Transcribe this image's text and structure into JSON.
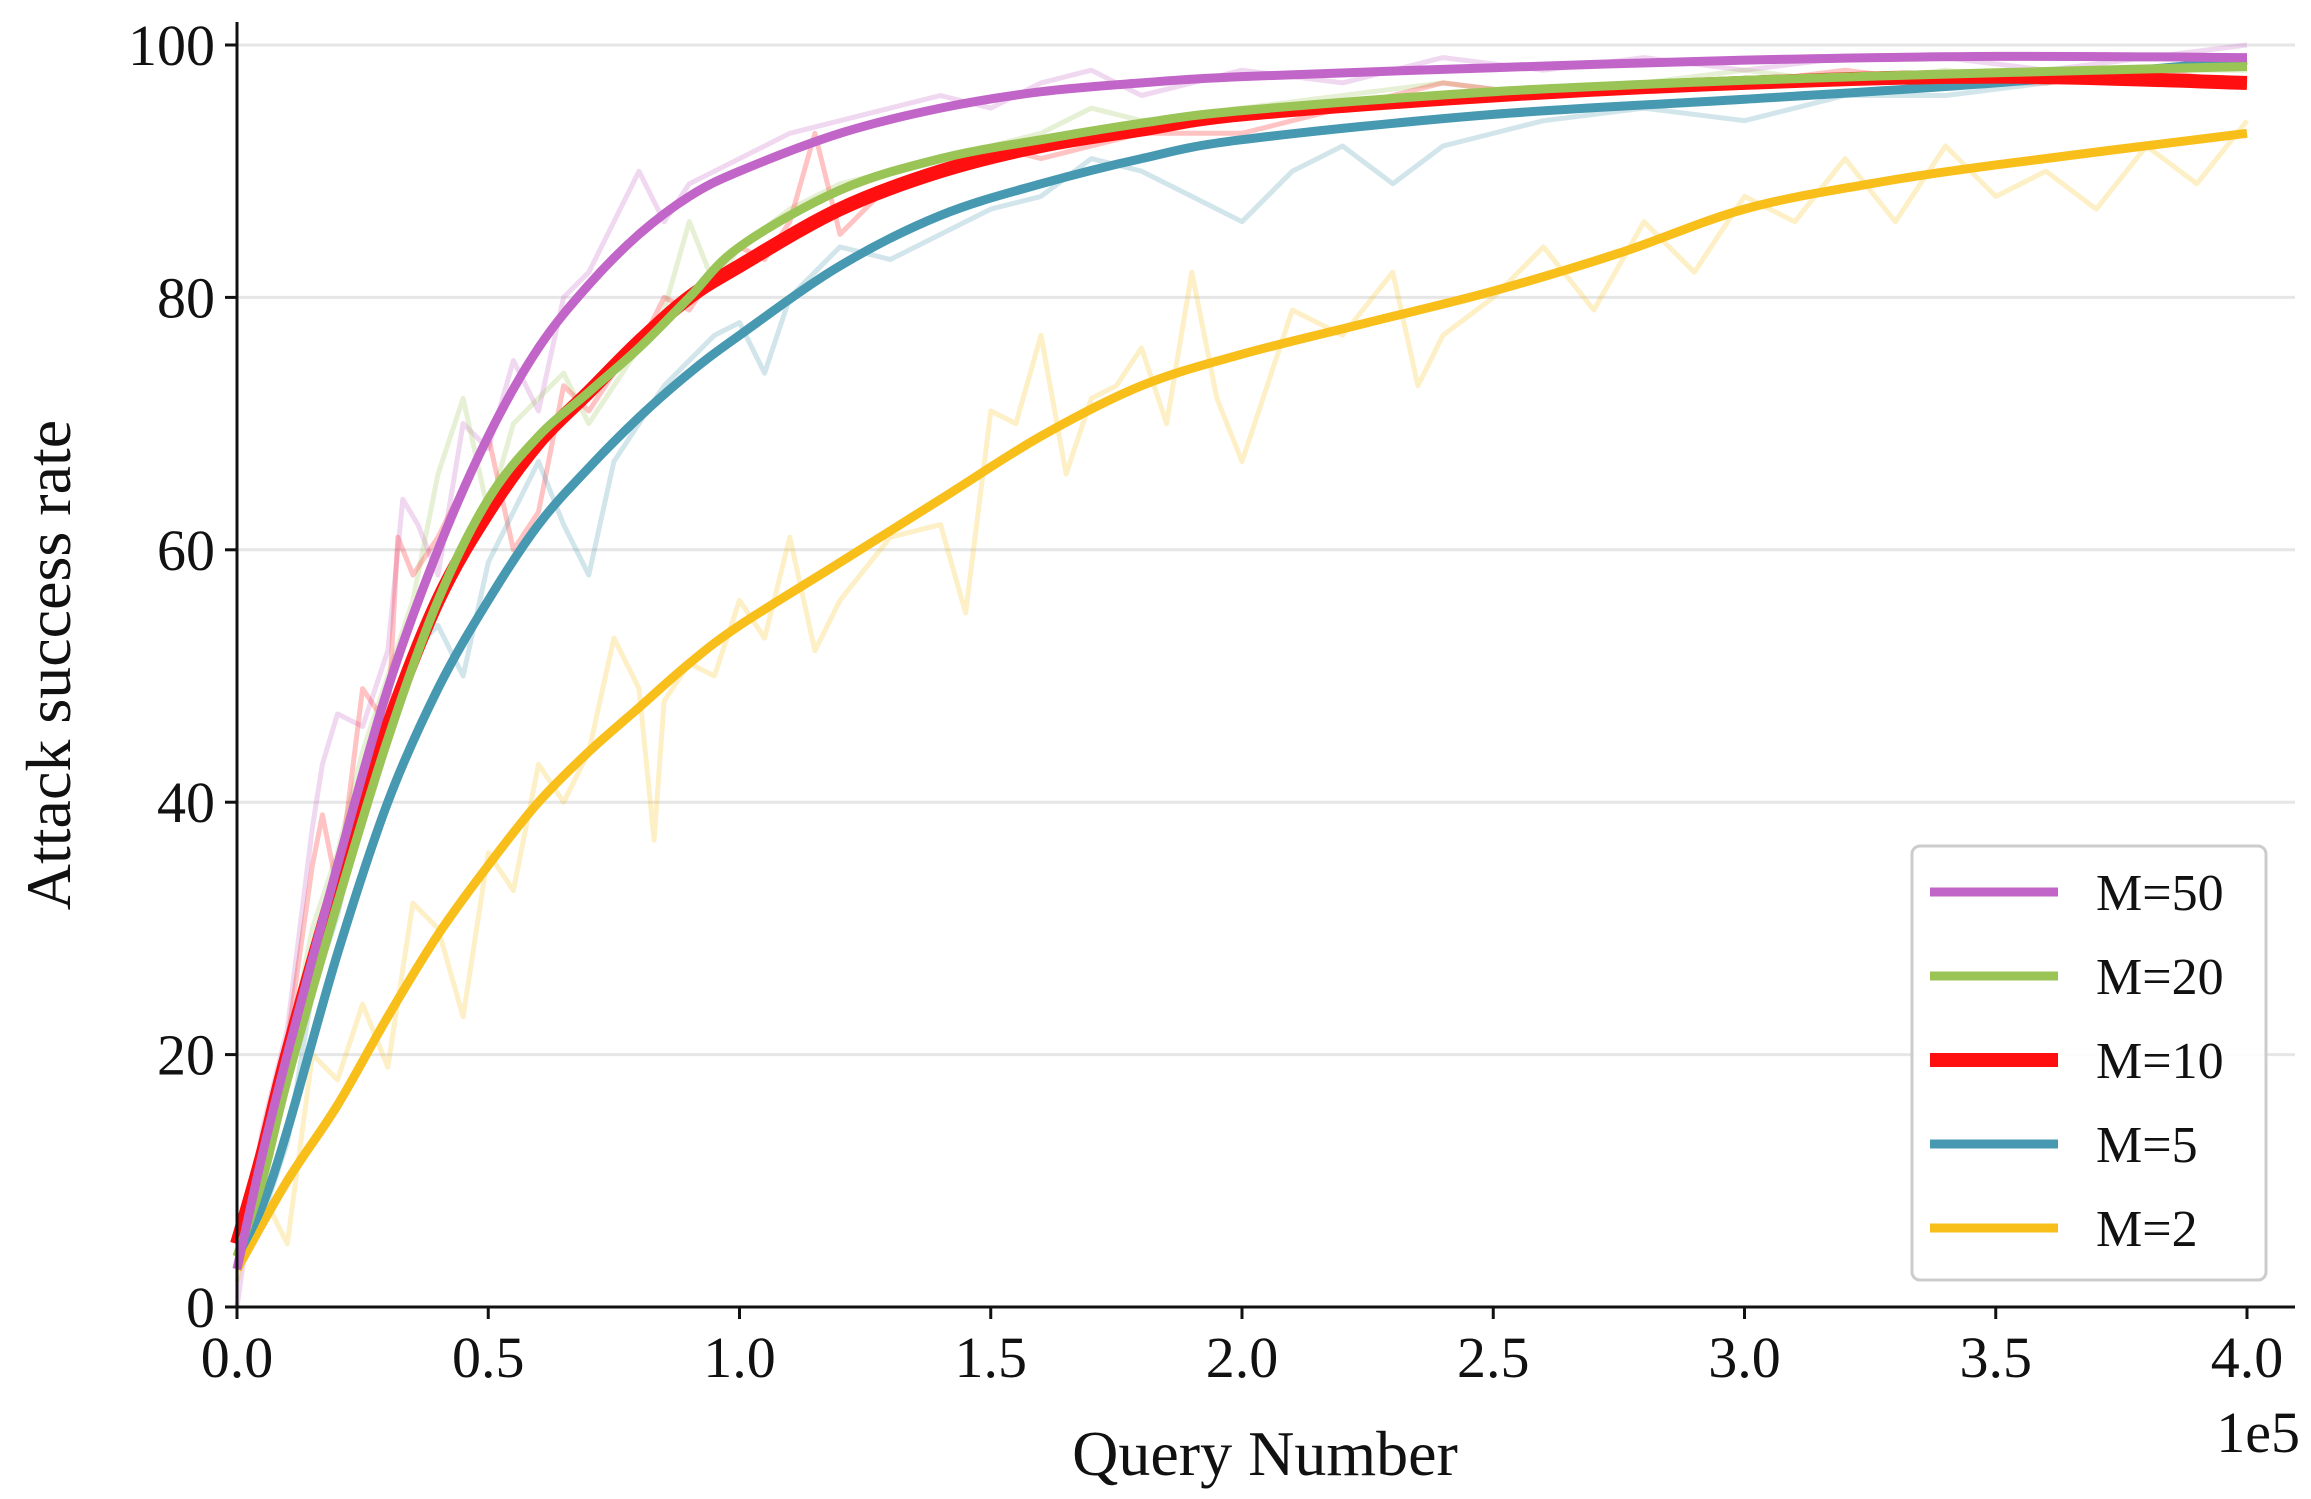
{
  "chart_data": {
    "type": "line",
    "title": "",
    "xlabel": "Query Number",
    "ylabel": "Attack success rate",
    "x_offset_label": "1e5",
    "xlim": [
      0,
      4.1
    ],
    "ylim": [
      0,
      102
    ],
    "x_ticks": [
      0.0,
      0.5,
      1.0,
      1.5,
      2.0,
      2.5,
      3.0,
      3.5,
      4.0
    ],
    "x_tick_labels": [
      "0.0",
      "0.5",
      "1.0",
      "1.5",
      "2.0",
      "2.5",
      "3.0",
      "3.5",
      "4.0"
    ],
    "y_ticks": [
      0,
      20,
      40,
      60,
      80,
      100
    ],
    "y_tick_labels": [
      "0",
      "20",
      "40",
      "60",
      "80",
      "100"
    ],
    "grid": "horizontal",
    "legend_position": "bottom-right",
    "series": [
      {
        "name": "M=50",
        "color": "#C265C8",
        "smooth": {
          "x": [
            0,
            0.05,
            0.1,
            0.2,
            0.3,
            0.4,
            0.5,
            0.6,
            0.7,
            0.8,
            0.9,
            1.0,
            1.2,
            1.4,
            1.6,
            1.8,
            2.0,
            2.5,
            3.0,
            3.5,
            4.0
          ],
          "y": [
            3,
            12,
            20,
            35,
            49,
            60,
            69,
            76,
            81,
            85,
            88,
            90,
            93,
            95,
            96.3,
            97,
            97.5,
            98.2,
            98.8,
            99.1,
            99
          ]
        },
        "raw": {
          "x": [
            0,
            0.05,
            0.1,
            0.15,
            0.17,
            0.2,
            0.25,
            0.3,
            0.33,
            0.36,
            0.4,
            0.45,
            0.5,
            0.55,
            0.6,
            0.65,
            0.7,
            0.75,
            0.8,
            0.85,
            0.9,
            1.0,
            1.1,
            1.2,
            1.3,
            1.4,
            1.5,
            1.6,
            1.7,
            1.8,
            1.9,
            2.0,
            2.2,
            2.4,
            2.6,
            2.8,
            3.0,
            3.2,
            3.4,
            3.6,
            3.8,
            4.0
          ],
          "y": [
            0,
            14,
            22,
            38,
            43,
            47,
            46,
            52,
            64,
            62,
            58,
            70,
            68,
            75,
            71,
            80,
            82,
            86,
            90,
            86,
            89,
            91,
            93,
            94,
            95,
            96,
            95,
            97,
            98,
            96,
            97,
            98,
            97,
            99,
            98,
            99,
            98,
            99,
            99,
            98,
            99,
            100
          ]
        }
      },
      {
        "name": "M=20",
        "color": "#9AC456",
        "smooth": {
          "x": [
            0,
            0.05,
            0.1,
            0.2,
            0.3,
            0.4,
            0.5,
            0.6,
            0.7,
            0.8,
            0.9,
            1.0,
            1.2,
            1.4,
            1.6,
            1.8,
            2.0,
            2.5,
            3.0,
            3.5,
            4.0
          ],
          "y": [
            4,
            10,
            18,
            32,
            45,
            56,
            64,
            69,
            72.5,
            76,
            80,
            84,
            88.5,
            91,
            92.5,
            93.8,
            94.8,
            96.3,
            97.2,
            97.8,
            98.3
          ]
        },
        "raw": {
          "x": [
            0,
            0.05,
            0.1,
            0.15,
            0.2,
            0.25,
            0.3,
            0.35,
            0.4,
            0.45,
            0.5,
            0.55,
            0.6,
            0.65,
            0.7,
            0.75,
            0.8,
            0.85,
            0.9,
            0.95,
            1.0,
            1.1,
            1.2,
            1.3,
            1.4,
            1.5,
            1.6,
            1.7,
            1.8,
            2.0,
            2.2,
            2.4,
            2.6,
            2.8,
            3.0,
            3.2,
            3.4,
            3.6,
            3.8,
            4.0
          ],
          "y": [
            3,
            11,
            20,
            30,
            36,
            44,
            50,
            56,
            66,
            72,
            63,
            70,
            72,
            74,
            70,
            73,
            76,
            79,
            86,
            81,
            84,
            87,
            89,
            90,
            91,
            92,
            93,
            95,
            94,
            95,
            96,
            97,
            96,
            97,
            98,
            97,
            98,
            97,
            98,
            98
          ]
        }
      },
      {
        "name": "M=10",
        "color": "#FF0F0F",
        "smooth": {
          "x": [
            0,
            0.05,
            0.1,
            0.2,
            0.3,
            0.4,
            0.5,
            0.6,
            0.7,
            0.8,
            0.9,
            1.0,
            1.2,
            1.4,
            1.6,
            1.8,
            2.0,
            2.5,
            3.0,
            3.5,
            4.0
          ],
          "y": [
            5,
            12,
            20,
            34,
            46,
            56,
            63,
            68.5,
            72.5,
            76.5,
            80,
            82.5,
            87,
            90,
            92,
            93.3,
            94.5,
            96,
            97,
            97.5,
            97
          ]
        },
        "raw": {
          "x": [
            0,
            0.05,
            0.1,
            0.15,
            0.17,
            0.2,
            0.25,
            0.3,
            0.32,
            0.35,
            0.4,
            0.45,
            0.5,
            0.55,
            0.6,
            0.65,
            0.7,
            0.75,
            0.8,
            0.85,
            0.9,
            0.95,
            1.0,
            1.05,
            1.1,
            1.15,
            1.2,
            1.3,
            1.4,
            1.5,
            1.6,
            1.8,
            2.0,
            2.2,
            2.4,
            2.6,
            2.8,
            3.0,
            3.2,
            3.4,
            3.6,
            3.8,
            4.0
          ],
          "y": [
            4,
            12,
            21,
            35,
            39,
            33,
            49,
            46,
            61,
            58,
            61,
            65,
            69,
            60,
            63,
            73,
            71,
            74,
            76,
            80,
            79,
            82,
            84,
            83,
            86,
            93,
            85,
            89,
            90,
            92,
            91,
            93,
            93,
            95,
            97,
            96,
            97,
            97,
            98,
            97,
            97,
            98,
            97
          ]
        }
      },
      {
        "name": "M=5",
        "color": "#4699B0",
        "smooth": {
          "x": [
            0,
            0.05,
            0.1,
            0.2,
            0.3,
            0.4,
            0.5,
            0.6,
            0.7,
            0.8,
            0.9,
            1.0,
            1.2,
            1.4,
            1.6,
            1.8,
            2.0,
            2.5,
            3.0,
            3.5,
            4.0
          ],
          "y": [
            4,
            8,
            14,
            28,
            40,
            49,
            56,
            62,
            66.5,
            70.5,
            74,
            77,
            82.5,
            86.5,
            89,
            91,
            92.5,
            94.5,
            95.7,
            97,
            98.8
          ]
        },
        "raw": {
          "x": [
            0,
            0.05,
            0.1,
            0.15,
            0.2,
            0.25,
            0.3,
            0.35,
            0.4,
            0.45,
            0.5,
            0.55,
            0.6,
            0.65,
            0.7,
            0.75,
            0.8,
            0.85,
            0.9,
            0.95,
            1.0,
            1.05,
            1.1,
            1.2,
            1.3,
            1.4,
            1.5,
            1.6,
            1.7,
            1.8,
            1.9,
            2.0,
            2.1,
            2.2,
            2.3,
            2.4,
            2.6,
            2.8,
            3.0,
            3.2,
            3.4,
            3.6,
            3.8,
            4.0
          ],
          "y": [
            3,
            7,
            13,
            25,
            31,
            40,
            46,
            52,
            54,
            50,
            59,
            63,
            67,
            62,
            58,
            67,
            70,
            73,
            75,
            77,
            78,
            74,
            80,
            84,
            83,
            85,
            87,
            88,
            91,
            90,
            88,
            86,
            90,
            92,
            89,
            92,
            94,
            95,
            94,
            96,
            96,
            97,
            98,
            99
          ]
        }
      },
      {
        "name": "M=2",
        "color": "#F8BE1A",
        "smooth": {
          "x": [
            0,
            0.1,
            0.2,
            0.3,
            0.4,
            0.5,
            0.6,
            0.7,
            0.8,
            0.9,
            1.0,
            1.2,
            1.4,
            1.6,
            1.8,
            2.0,
            2.25,
            2.5,
            2.75,
            3.0,
            3.25,
            3.5,
            4.0
          ],
          "y": [
            3,
            10,
            16,
            23,
            29.5,
            35,
            40,
            44,
            47.5,
            51,
            54,
            59,
            64,
            69,
            73,
            75.5,
            78,
            80.5,
            83.5,
            87,
            89,
            90.5,
            93
          ]
        },
        "raw": {
          "x": [
            0,
            0.05,
            0.1,
            0.15,
            0.2,
            0.25,
            0.3,
            0.35,
            0.4,
            0.45,
            0.5,
            0.55,
            0.6,
            0.65,
            0.7,
            0.75,
            0.8,
            0.83,
            0.85,
            0.9,
            0.95,
            1.0,
            1.05,
            1.1,
            1.15,
            1.2,
            1.3,
            1.4,
            1.45,
            1.5,
            1.55,
            1.6,
            1.65,
            1.7,
            1.75,
            1.8,
            1.85,
            1.9,
            1.95,
            2.0,
            2.1,
            2.2,
            2.3,
            2.35,
            2.4,
            2.5,
            2.6,
            2.7,
            2.8,
            2.9,
            3.0,
            3.1,
            3.2,
            3.3,
            3.4,
            3.5,
            3.6,
            3.7,
            3.8,
            3.9,
            4.0
          ],
          "y": [
            2,
            9,
            5,
            20,
            18,
            24,
            19,
            32,
            30,
            23,
            36,
            33,
            43,
            40,
            44,
            53,
            49,
            37,
            48,
            51,
            50,
            56,
            53,
            61,
            52,
            56,
            61,
            62,
            55,
            71,
            70,
            77,
            66,
            72,
            73,
            76,
            70,
            82,
            72,
            67,
            79,
            77,
            82,
            73,
            77,
            80,
            84,
            79,
            86,
            82,
            88,
            86,
            91,
            86,
            92,
            88,
            90,
            87,
            92,
            89,
            94
          ]
        }
      }
    ]
  }
}
